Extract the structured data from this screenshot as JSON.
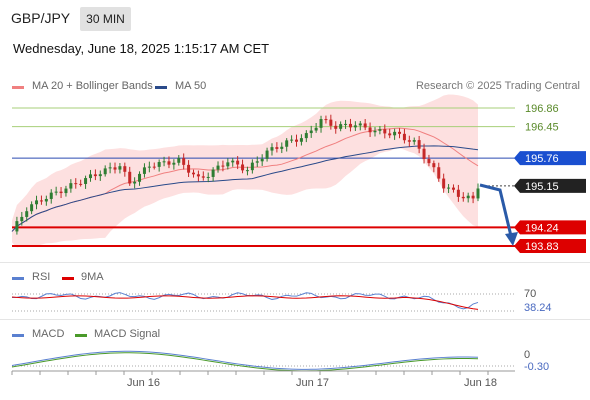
{
  "header": {
    "symbol": "GBP/JPY",
    "timeframe": "30 MIN",
    "datetime": "Wednesday, June 18, 2025 1:15:17 AM CET"
  },
  "legend": {
    "items": [
      {
        "label": "MA 20 + Bollinger Bands",
        "color": "#f08080"
      },
      {
        "label": "MA 50",
        "color": "#2a4a8a"
      }
    ],
    "research": "Research © 2025 Trading Central"
  },
  "levels": [
    {
      "label": "196.86",
      "kind": "green",
      "value": 196.86
    },
    {
      "label": "196.45",
      "kind": "green",
      "value": 196.45
    },
    {
      "label": "195.76",
      "kind": "blue",
      "value": 195.76
    },
    {
      "label": "195.15",
      "kind": "current",
      "value": 195.15
    },
    {
      "label": "194.24",
      "kind": "red",
      "value": 194.24
    },
    {
      "label": "193.83",
      "kind": "red",
      "value": 193.83
    }
  ],
  "colors": {
    "green_level": "#a7cf78",
    "green_text": "#5a8a2a",
    "blue_level": "#2a4ab0",
    "blue_label_bg": "#1a4fd0",
    "red_level": "#dd0000",
    "current_label_bg": "#222222",
    "bollinger_fill": "#fde0e0",
    "ma20": "#f08080",
    "ma50": "#2a4a8a",
    "candle_up": "#2e7d32",
    "candle_down": "#c62828",
    "arrow": "#2a5aa8"
  },
  "rsi": {
    "legend": [
      {
        "label": "RSI",
        "color": "#5a80d0"
      },
      {
        "label": "9MA",
        "color": "#dd0000"
      }
    ],
    "level_label": "70",
    "current_label": "38.24"
  },
  "macd": {
    "legend": [
      {
        "label": "MACD",
        "color": "#5a80d0"
      },
      {
        "label": "MACD Signal",
        "color": "#4a9a2a"
      }
    ],
    "zero_label": "0",
    "current_label": "-0.30"
  },
  "xaxis": {
    "ticks": [
      "Jun 16",
      "Jun 17",
      "Jun 18"
    ]
  }
}
